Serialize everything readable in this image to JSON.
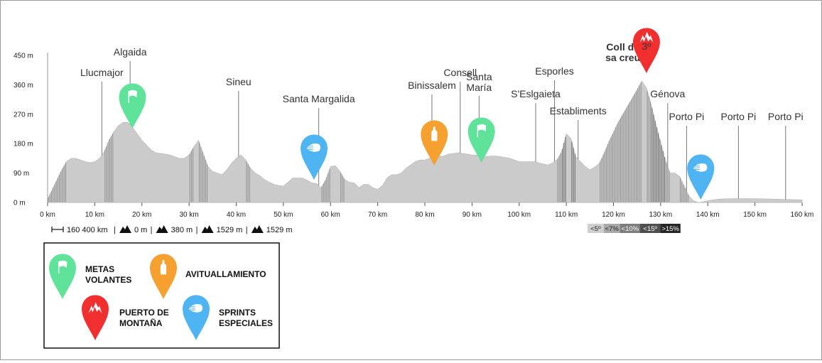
{
  "chart_data": {
    "type": "area",
    "title": "",
    "xlabel": "",
    "ylabel": "",
    "x_unit": "km",
    "y_unit": "m",
    "xlim": [
      0,
      160
    ],
    "ylim": [
      0,
      450
    ],
    "x_ticks": [
      "0 km",
      "10 km",
      "20 km",
      "30 km",
      "40 km",
      "50 km",
      "60 km",
      "70 km",
      "80 km",
      "90 km",
      "100 km",
      "110 km",
      "120 km",
      "130 km",
      "140 km",
      "150 km",
      "160 km"
    ],
    "x_tick_values": [
      0,
      10,
      20,
      30,
      40,
      50,
      60,
      70,
      80,
      90,
      100,
      110,
      120,
      130,
      140,
      150,
      160
    ],
    "y_ticks": [
      "0 m",
      "90 m",
      "180 m",
      "270 m",
      "360 m",
      "450 m"
    ],
    "y_tick_values": [
      0,
      90,
      180,
      270,
      360,
      450
    ],
    "grid": false,
    "profile": {
      "x": [
        0,
        1,
        2,
        3,
        4,
        5,
        6,
        7,
        8,
        9,
        10,
        11,
        12,
        13,
        14,
        15,
        16,
        17,
        18,
        19,
        20,
        21,
        22,
        23,
        24,
        25,
        26,
        27,
        28,
        29,
        30,
        31,
        32,
        33,
        34,
        35,
        36,
        37,
        38,
        39,
        40,
        41,
        42,
        43,
        44,
        45,
        46,
        47,
        48,
        49,
        50,
        51,
        52,
        53,
        54,
        55,
        56,
        57,
        58,
        59,
        60,
        61,
        62,
        63,
        64,
        65,
        66,
        67,
        68,
        69,
        70,
        71,
        72,
        73,
        74,
        75,
        76,
        77,
        78,
        79,
        80,
        81,
        82,
        83,
        84,
        85,
        86,
        87,
        88,
        89,
        90,
        91,
        92,
        93,
        94,
        95,
        96,
        97,
        98,
        99,
        100,
        101,
        102,
        103,
        104,
        105,
        106,
        107,
        108,
        109,
        110,
        111,
        112,
        113,
        114,
        115,
        116,
        117,
        118,
        119,
        120,
        121,
        122,
        123,
        124,
        125,
        126,
        127,
        128,
        129,
        130,
        131,
        132,
        133,
        134,
        135,
        136,
        137,
        138,
        139,
        140,
        142,
        145,
        150,
        155,
        160
      ],
      "y": [
        10,
        40,
        70,
        100,
        125,
        135,
        135,
        130,
        125,
        122,
        125,
        135,
        155,
        190,
        215,
        235,
        245,
        245,
        230,
        210,
        190,
        175,
        160,
        152,
        150,
        148,
        145,
        140,
        135,
        135,
        145,
        170,
        190,
        150,
        110,
        95,
        90,
        85,
        100,
        120,
        135,
        145,
        130,
        105,
        90,
        82,
        70,
        62,
        55,
        52,
        50,
        62,
        75,
        75,
        75,
        68,
        60,
        58,
        45,
        70,
        110,
        112,
        95,
        70,
        62,
        60,
        45,
        55,
        55,
        45,
        40,
        52,
        75,
        85,
        85,
        90,
        105,
        115,
        125,
        130,
        130,
        135,
        138,
        140,
        142,
        148,
        150,
        152,
        150,
        148,
        145,
        145,
        143,
        140,
        142,
        142,
        140,
        138,
        135,
        130,
        125,
        125,
        125,
        125,
        122,
        118,
        115,
        120,
        130,
        155,
        210,
        195,
        140,
        125,
        110,
        100,
        108,
        120,
        150,
        185,
        215,
        245,
        270,
        295,
        320,
        345,
        372,
        350,
        300,
        240,
        185,
        130,
        90,
        90,
        80,
        50,
        20,
        5,
        0,
        2,
        5,
        10,
        12,
        12,
        10,
        8
      ]
    },
    "waypoints": [
      {
        "name": "Llucmajor",
        "km": 11.5
      },
      {
        "name": "Algaida",
        "km": 17.5
      },
      {
        "name": "Sineu",
        "km": 40.5
      },
      {
        "name": "Santa Margalida",
        "km": 57.5
      },
      {
        "name": "Binissalem",
        "km": 81.5
      },
      {
        "name": "Consell",
        "km": 87.5
      },
      {
        "name": "Santa María",
        "km": 91.5
      },
      {
        "name": "S'Eslgaieta",
        "km": 103.5
      },
      {
        "name": "Esporles",
        "km": 107.5
      },
      {
        "name": "Establiments",
        "km": 112.5
      },
      {
        "name": "Coll de sa creu",
        "km": 126.5
      },
      {
        "name": "Génova",
        "km": 131.5
      },
      {
        "name": "Porto Pi",
        "km": 135.5
      },
      {
        "name": "Porto Pi",
        "km": 146.5
      },
      {
        "name": "Porto Pi",
        "km": 156.5
      }
    ],
    "markers": [
      {
        "type": "metas-volantes",
        "km": 18,
        "color": "#5fe39a"
      },
      {
        "type": "sprint-especial",
        "km": 56.5,
        "color": "#4fb4f2"
      },
      {
        "type": "avituallamiento",
        "km": 82,
        "color": "#f6a030"
      },
      {
        "type": "metas-volantes",
        "km": 92,
        "color": "#5fe39a"
      },
      {
        "type": "puerto-montana",
        "km": 127,
        "color": "#f22f2f",
        "label": "3º"
      },
      {
        "type": "sprint-especial",
        "km": 138.5,
        "color": "#4fb4f2"
      }
    ],
    "summary_stats": [
      {
        "icon": "distance-icon",
        "text": "160 400 km"
      },
      {
        "icon": "min-altitude-icon",
        "text": "0 m"
      },
      {
        "icon": "max-altitude-icon",
        "text": "380 m"
      },
      {
        "icon": "ascent-icon",
        "text": "1529 m"
      },
      {
        "icon": "descent-icon",
        "text": "1529 m"
      }
    ],
    "gradient_legend": [
      {
        "label": "<5º",
        "color": "#cfcfcf",
        "text_color": "#222"
      },
      {
        "label": "<7%",
        "color": "#a9a9a9",
        "text_color": "#222"
      },
      {
        "label": "<10%",
        "color": "#7d7d7d",
        "text_color": "#fff"
      },
      {
        "label": "<15º",
        "color": "#4f4f4f",
        "text_color": "#fff"
      },
      {
        "label": ">15%",
        "color": "#262626",
        "text_color": "#fff"
      }
    ]
  },
  "legend": {
    "items": [
      {
        "type": "metas-volantes",
        "color": "#5fe39a",
        "lines": [
          "METAS",
          "VOLANTES"
        ]
      },
      {
        "type": "avituallamiento",
        "color": "#f6a030",
        "lines": [
          "AVITUALLAMIENTO"
        ]
      },
      {
        "type": "puerto-montana",
        "color": "#f22f2f",
        "lines": [
          "PUERTO DE",
          "MONTAÑA"
        ]
      },
      {
        "type": "sprint-especial",
        "color": "#4fb4f2",
        "lines": [
          "SPRINTS",
          "ESPECIALES"
        ]
      }
    ]
  }
}
